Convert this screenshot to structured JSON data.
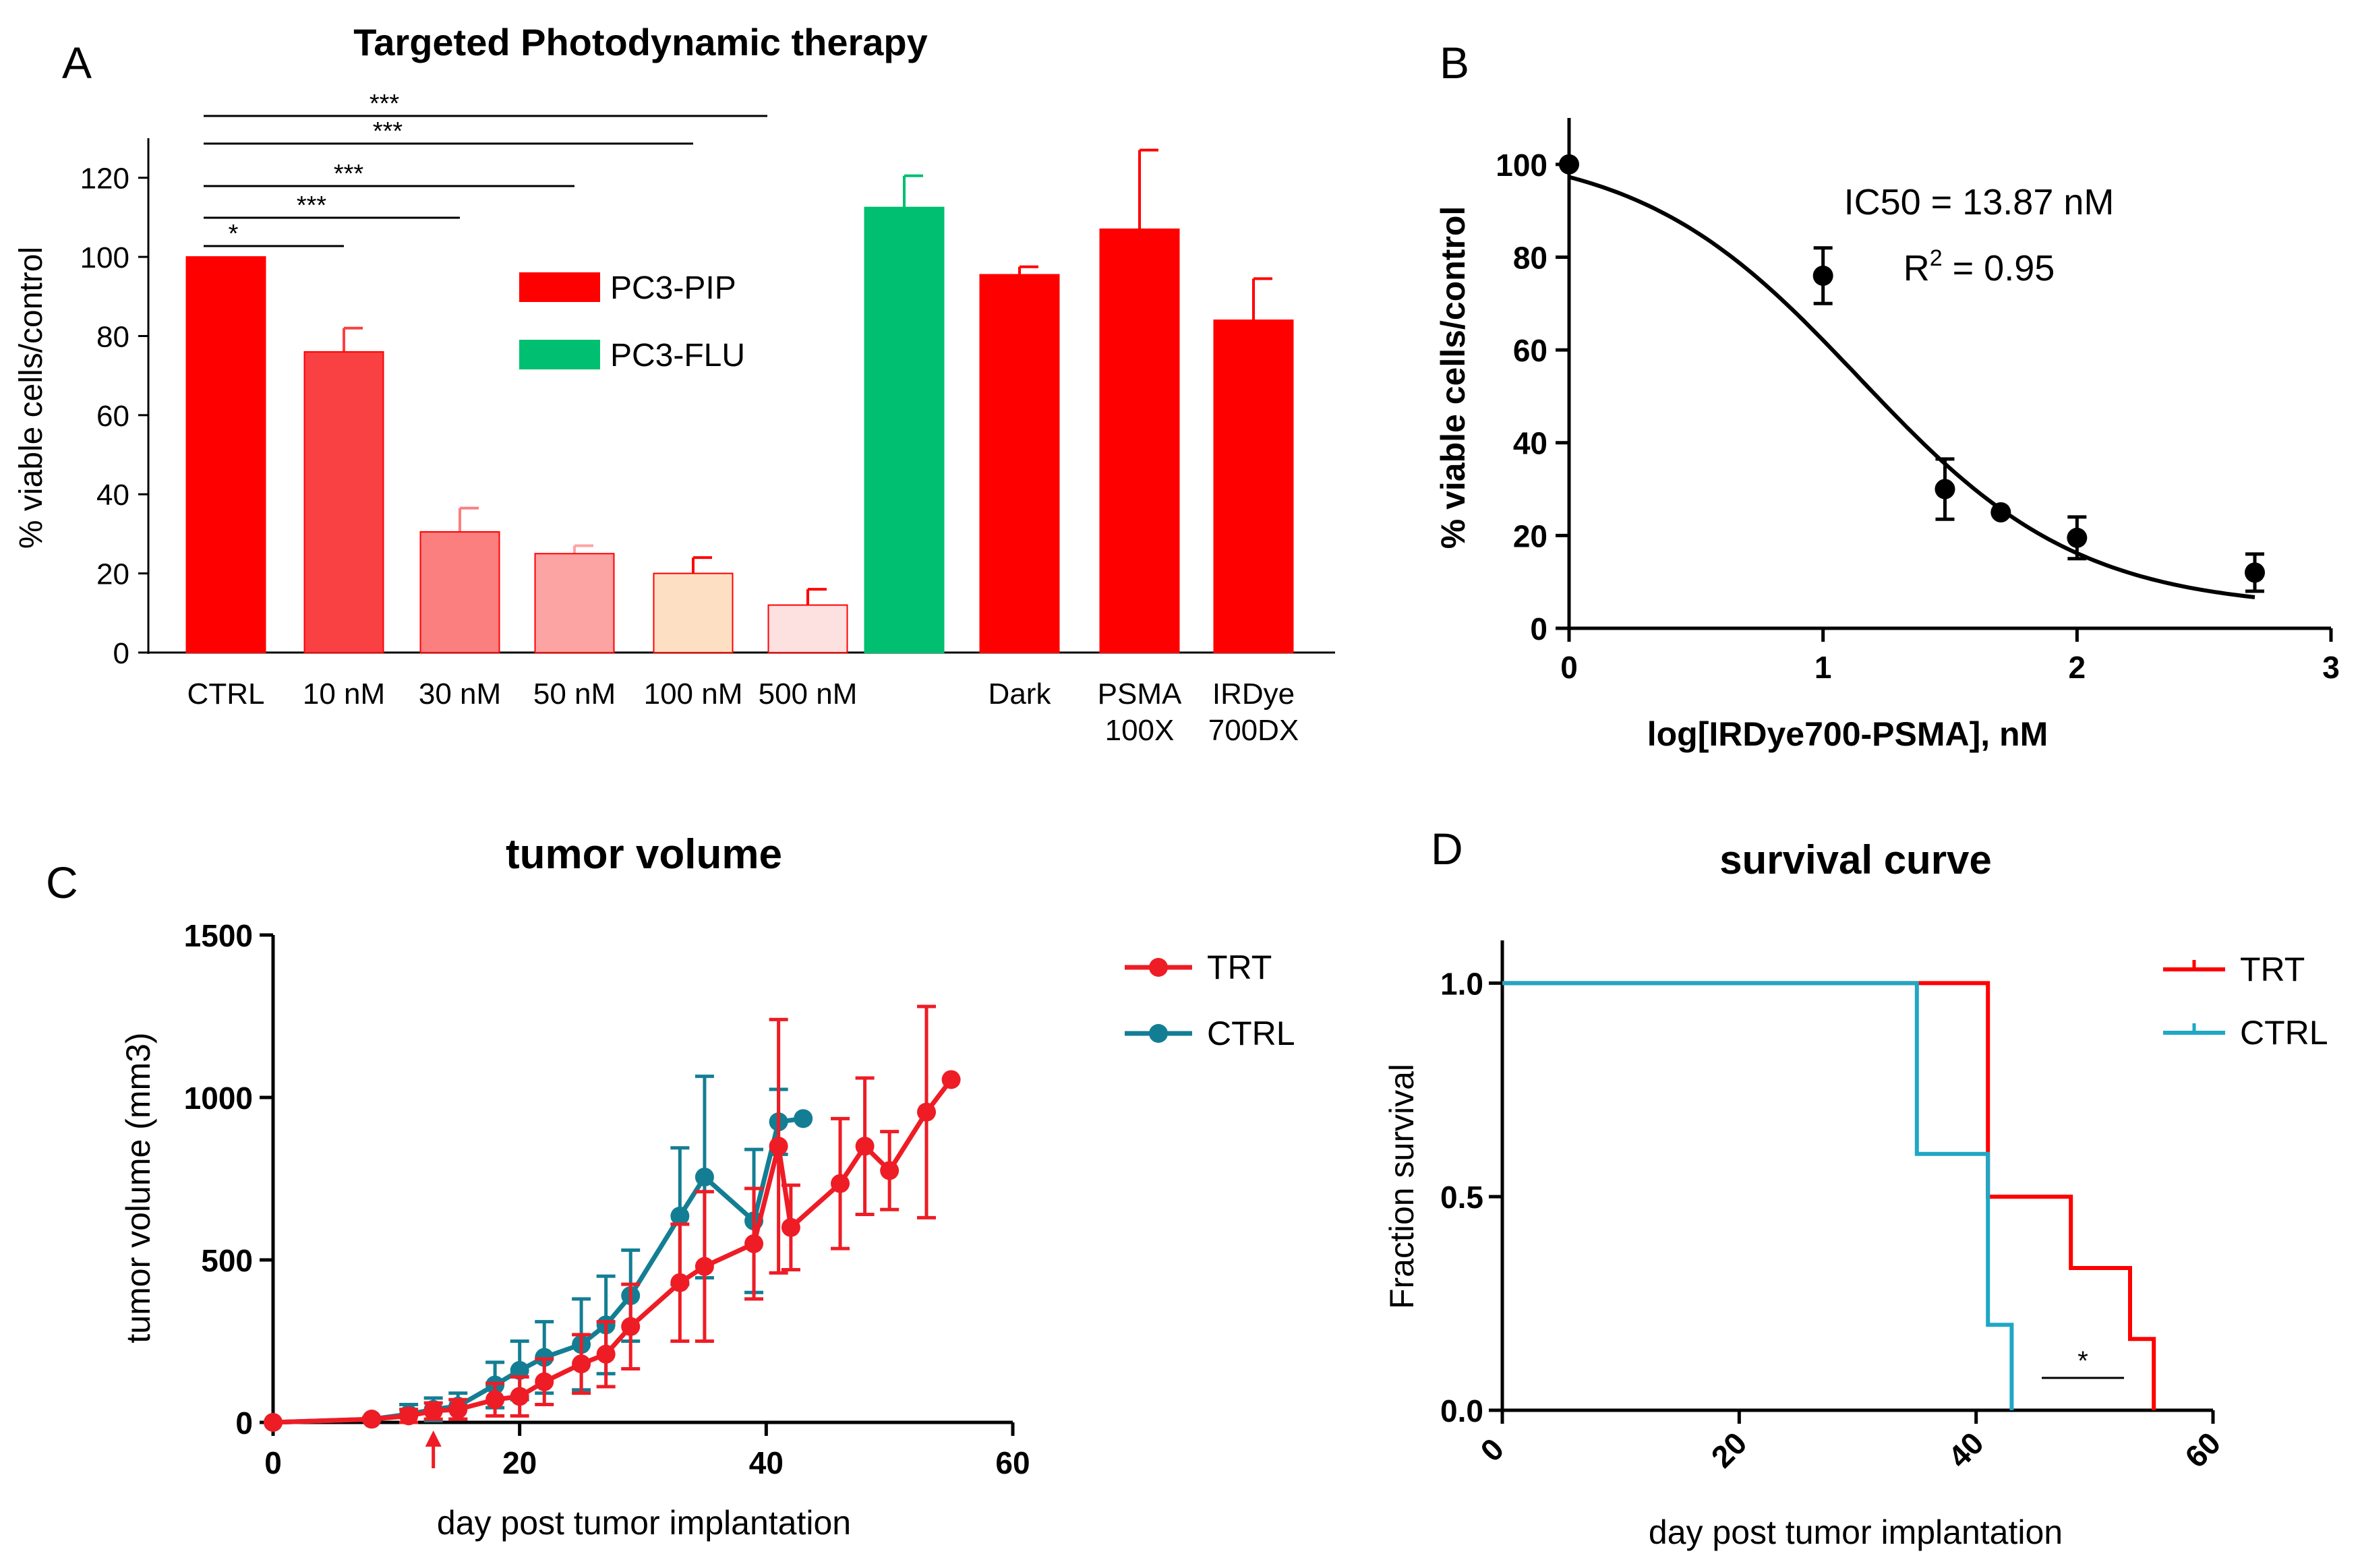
{
  "chart_data": [
    {
      "panel": "A",
      "type": "bar",
      "title": "Targeted Photodynamic therapy",
      "ylabel": "% viable cells/control",
      "xlabel": "",
      "ylim": [
        0,
        130
      ],
      "yticks": [
        0,
        20,
        40,
        60,
        80,
        100,
        120
      ],
      "categories": [
        {
          "label": "CTRL",
          "label2": ""
        },
        {
          "label": "10 nM",
          "label2": ""
        },
        {
          "label": "30 nM",
          "label2": ""
        },
        {
          "label": "50 nM",
          "label2": ""
        },
        {
          "label": "100 nM",
          "label2": ""
        },
        {
          "label": "500 nM",
          "label2": ""
        },
        {
          "label": "",
          "label2": ""
        },
        {
          "label": "Dark",
          "label2": ""
        },
        {
          "label": "PSMA",
          "label2": "100X"
        },
        {
          "label": "IRDye",
          "label2": "700DX"
        }
      ],
      "values": [
        100,
        76,
        30.5,
        25,
        20,
        12,
        112.5,
        95.5,
        107,
        84
      ],
      "errors": [
        0,
        6,
        6,
        2,
        4,
        4,
        8,
        2,
        20,
        10.5
      ],
      "colors": [
        "#ff0000",
        "#f94144",
        "#fb7f7f",
        "#fca3a3",
        "#fde0c3",
        "#fde0e0",
        "#00bf70",
        "#ff0000",
        "#ff0000",
        "#ff0000"
      ],
      "legend": [
        {
          "label": "PC3-PIP",
          "color": "#ff0000"
        },
        {
          "label": "PC3-FLU",
          "color": "#00bf70"
        }
      ],
      "significance": [
        {
          "label": "*",
          "from": 0,
          "to": 1
        },
        {
          "label": "***",
          "from": 0,
          "to": 2
        },
        {
          "label": "***",
          "from": 0,
          "to": 3
        },
        {
          "label": "***",
          "from": 0,
          "to": 4
        },
        {
          "label": "***",
          "from": 0,
          "to": 5
        }
      ]
    },
    {
      "panel": "B",
      "type": "scatter",
      "title": "",
      "xlabel": "log[IRDye700-PSMA], nM",
      "ylabel": "% viable cells/control",
      "xlim": [
        0,
        3
      ],
      "ylim": [
        0,
        110
      ],
      "xticks": [
        0,
        1,
        2,
        3
      ],
      "yticks": [
        0,
        20,
        40,
        60,
        80,
        100
      ],
      "x": [
        0,
        1,
        1.48,
        1.7,
        2,
        2.7
      ],
      "y": [
        100,
        76,
        30,
        25,
        19.5,
        12
      ],
      "errors": [
        0,
        6,
        6.5,
        0,
        4.5,
        4
      ],
      "fit": {
        "top": 104,
        "bottom": 4,
        "logIC50": 1.142,
        "hill": -1.0
      },
      "ic50_text": "IC50 = 13.87 nM",
      "r2_prefix": "R",
      "r2_sup": "2",
      "r2_suffix": " = 0.95"
    },
    {
      "panel": "C",
      "type": "line",
      "title": "tumor volume",
      "xlabel": "day post tumor implantation",
      "ylabel": "tumor volume (mm3)",
      "xlim": [
        0,
        60
      ],
      "ylim": [
        0,
        1500
      ],
      "xticks": [
        0,
        20,
        40,
        60
      ],
      "yticks": [
        0,
        500,
        1000,
        1500
      ],
      "treatment_day": 13,
      "series": [
        {
          "name": "CTRL",
          "color": "#137e93",
          "x": [
            0,
            8,
            11,
            13,
            15,
            18,
            20,
            22,
            25,
            27,
            29,
            33,
            35,
            39,
            41,
            43
          ],
          "y": [
            0,
            10,
            25,
            40,
            50,
            115,
            160,
            200,
            240,
            300,
            390,
            635,
            755,
            620,
            925,
            935
          ],
          "err": [
            0,
            5,
            30,
            35,
            40,
            70,
            90,
            110,
            140,
            150,
            140,
            210,
            310,
            220,
            100,
            0
          ]
        },
        {
          "name": "TRT",
          "color": "#ee1c25",
          "x": [
            0,
            8,
            11,
            13,
            15,
            18,
            20,
            22,
            25,
            27,
            29,
            33,
            35,
            39,
            41,
            42,
            46,
            48,
            50,
            53,
            55
          ],
          "y": [
            0,
            10,
            20,
            35,
            40,
            70,
            80,
            125,
            180,
            210,
            295,
            430,
            480,
            550,
            850,
            600,
            735,
            850,
            775,
            955,
            1055
          ],
          "err": [
            0,
            5,
            20,
            25,
            30,
            50,
            60,
            70,
            90,
            100,
            130,
            180,
            230,
            170,
            390,
            130,
            200,
            210,
            120,
            325,
            0
          ]
        }
      ]
    },
    {
      "panel": "D",
      "type": "line",
      "title": "survival curve",
      "xlabel": "day post tumor implantation",
      "ylabel": "Fraction survival",
      "xlim": [
        0,
        60
      ],
      "ylim": [
        0,
        1.1
      ],
      "xticks": [
        0,
        20,
        40,
        60
      ],
      "yticks": [
        0.0,
        0.5,
        1.0
      ],
      "ytick_labels": [
        "0.0",
        "0.5",
        "1.0"
      ],
      "significance_label": "*",
      "series": [
        {
          "name": "TRT",
          "color": "#ff0000",
          "x": [
            0,
            41,
            41,
            48,
            48,
            53,
            53,
            55,
            55
          ],
          "y": [
            1,
            1,
            0.5,
            0.5,
            0.333,
            0.333,
            0.167,
            0.167,
            0
          ]
        },
        {
          "name": "CTRL",
          "color": "#1fa7c5",
          "x": [
            0,
            35,
            35,
            41,
            41,
            43,
            43
          ],
          "y": [
            1,
            1,
            0.6,
            0.6,
            0.2,
            0.2,
            0
          ]
        }
      ]
    }
  ],
  "panel_letters": {
    "a": "A",
    "b": "B",
    "c": "C",
    "d": "D"
  }
}
